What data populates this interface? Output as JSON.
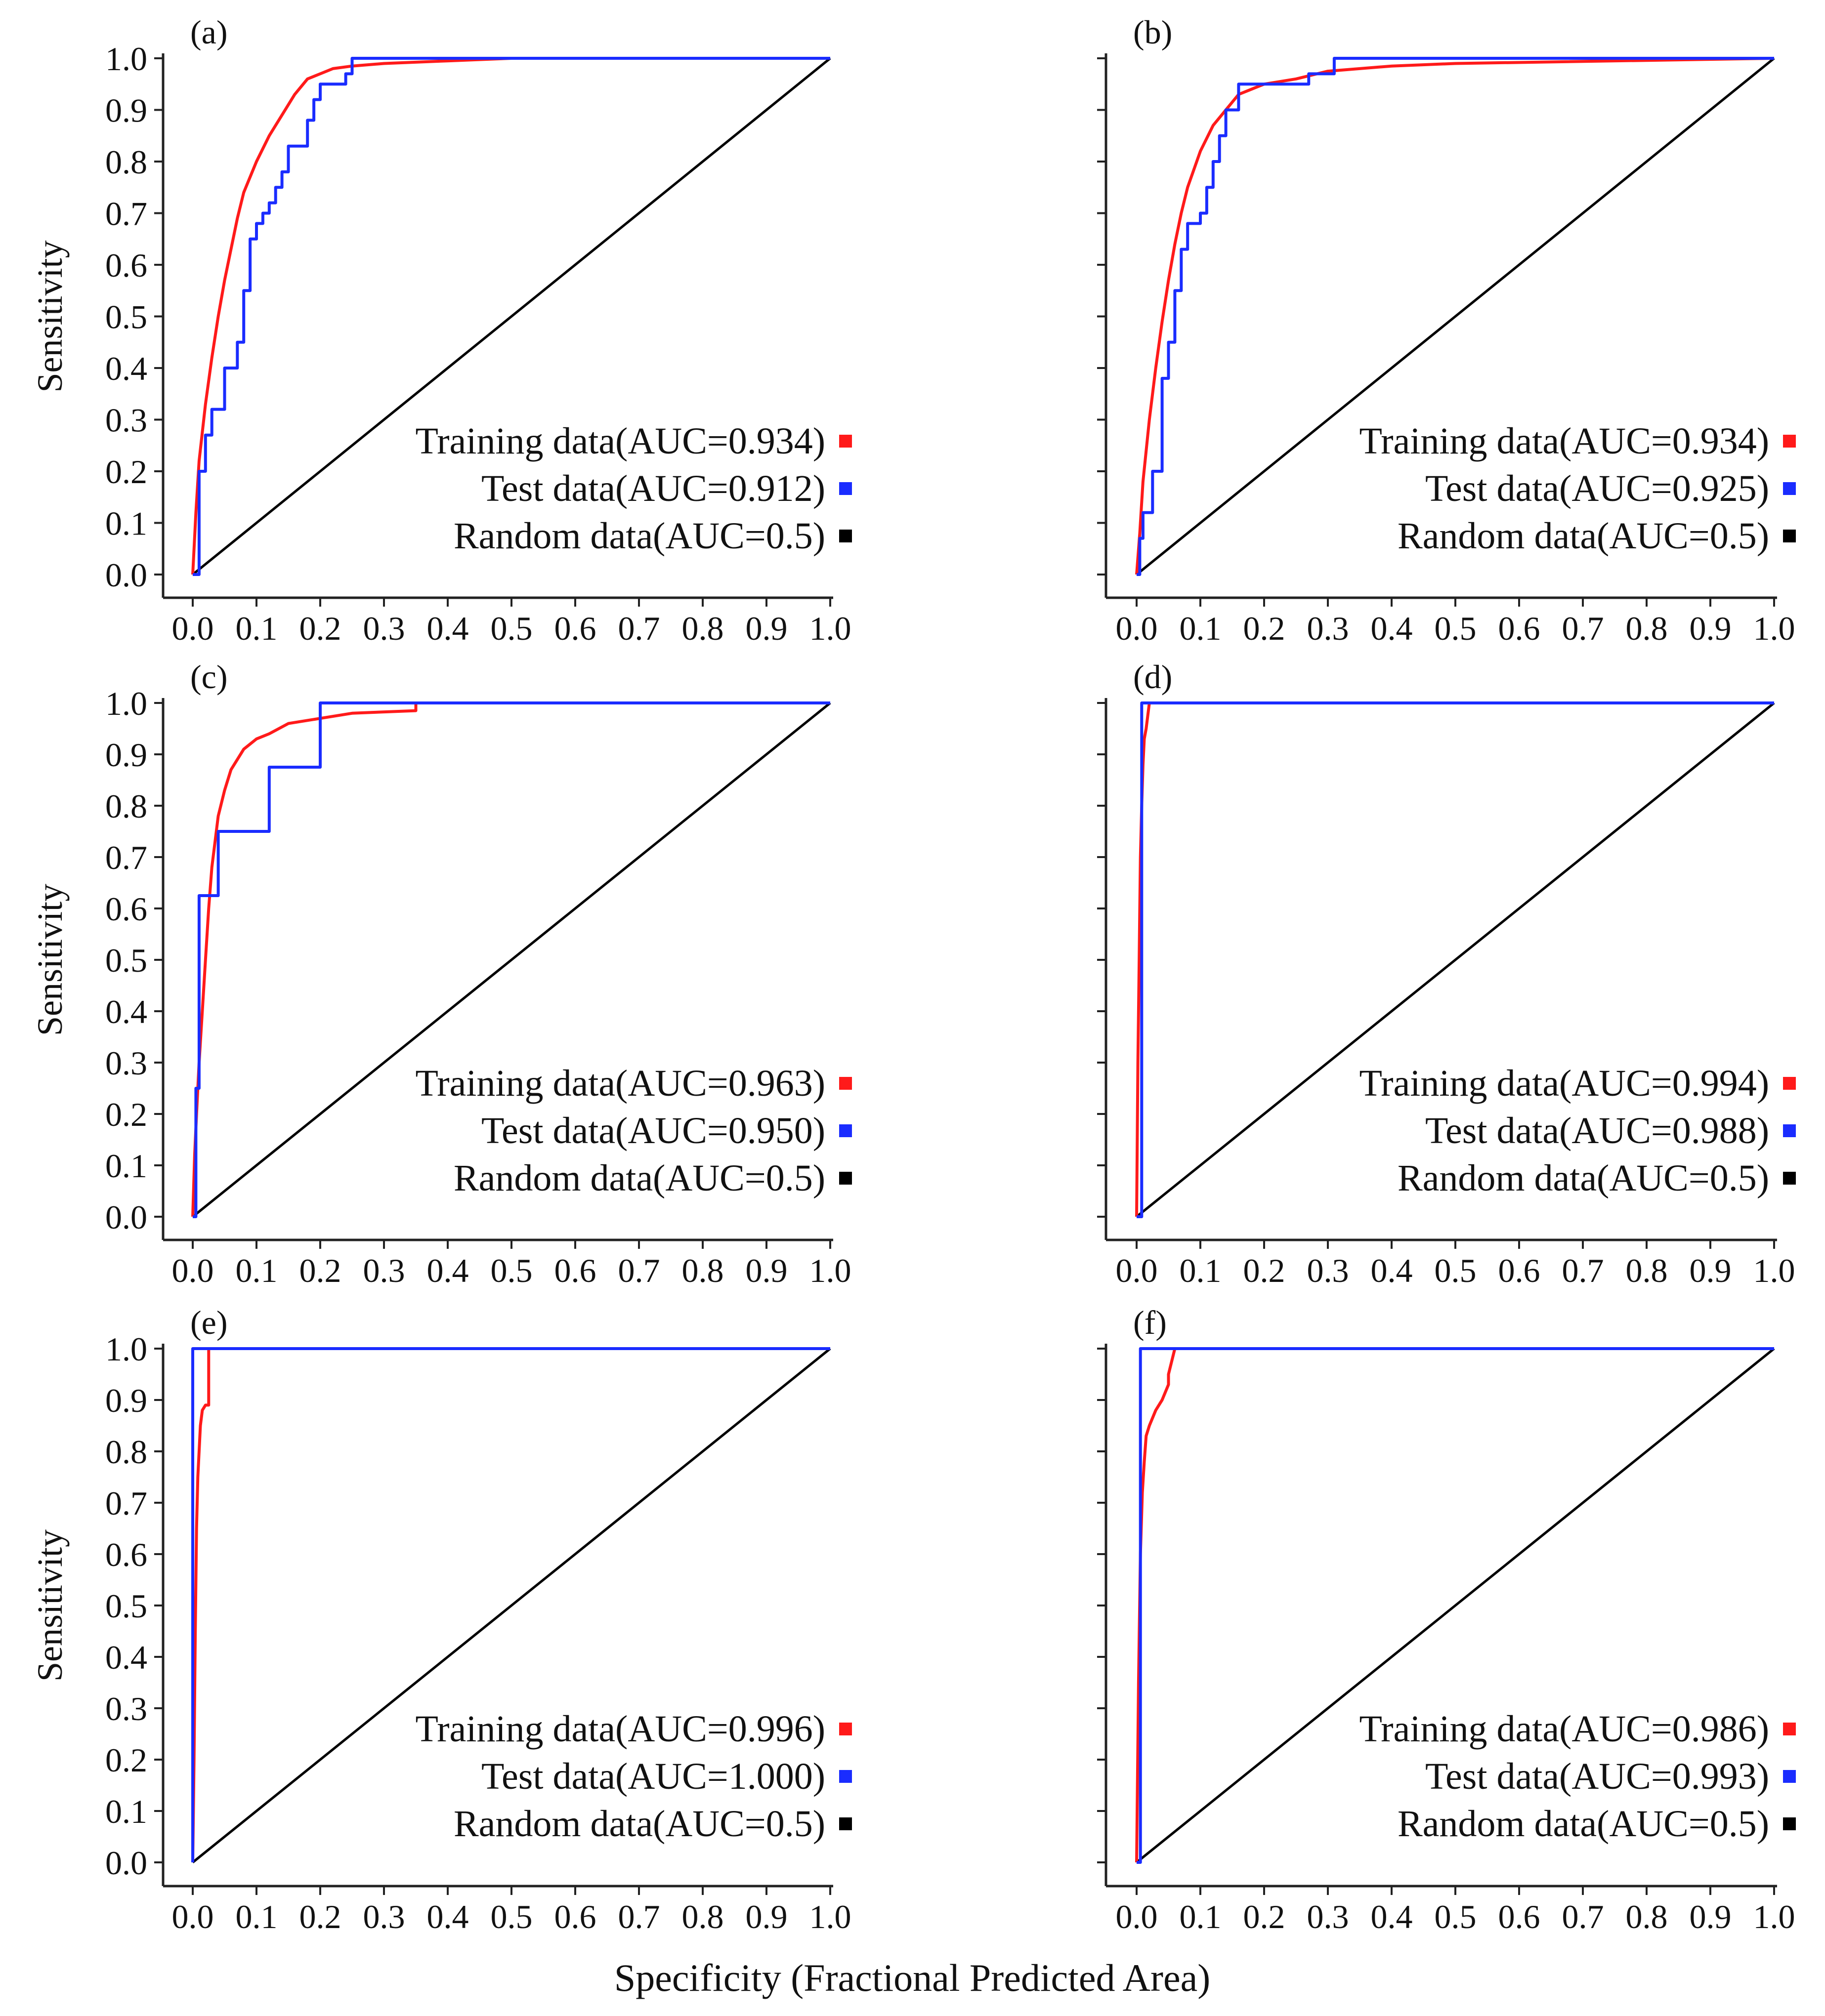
{
  "figure": {
    "xlabel": "Specificity (Fractional Predicted Area)",
    "colors": {
      "training": "#ff1a1a",
      "test": "#1a2cff",
      "random": "#000000"
    }
  },
  "chart_data": [
    {
      "type": "line",
      "panel": "(a)",
      "xlim": [
        0,
        1
      ],
      "ylim": [
        0,
        1
      ],
      "ylabel": "Sensitivity",
      "legend_position": "bottom-right",
      "xticks": [
        "0.0",
        "0.1",
        "0.2",
        "0.3",
        "0.4",
        "0.5",
        "0.6",
        "0.7",
        "0.8",
        "0.9",
        "1.0"
      ],
      "yticks": [
        "0.0",
        "0.1",
        "0.2",
        "0.3",
        "0.4",
        "0.5",
        "0.6",
        "0.7",
        "0.8",
        "0.9",
        "1.0"
      ],
      "series": [
        {
          "name": "Training data(AUC=0.934)",
          "color": "#ff1a1a",
          "x": [
            0,
            0.005,
            0.01,
            0.02,
            0.03,
            0.04,
            0.05,
            0.06,
            0.07,
            0.08,
            0.1,
            0.12,
            0.14,
            0.16,
            0.18,
            0.2,
            0.22,
            0.25,
            0.3,
            0.4,
            0.5,
            1.0
          ],
          "y": [
            0,
            0.12,
            0.22,
            0.33,
            0.42,
            0.5,
            0.57,
            0.63,
            0.69,
            0.74,
            0.8,
            0.85,
            0.89,
            0.93,
            0.96,
            0.97,
            0.98,
            0.985,
            0.99,
            0.995,
            1.0,
            1.0
          ]
        },
        {
          "name": "Test data(AUC=0.912)",
          "color": "#1a2cff",
          "x": [
            0,
            0.01,
            0.01,
            0.02,
            0.02,
            0.03,
            0.03,
            0.05,
            0.05,
            0.07,
            0.07,
            0.08,
            0.08,
            0.09,
            0.09,
            0.1,
            0.1,
            0.11,
            0.11,
            0.12,
            0.12,
            0.13,
            0.13,
            0.14,
            0.14,
            0.15,
            0.15,
            0.18,
            0.18,
            0.19,
            0.19,
            0.2,
            0.2,
            0.22,
            0.22,
            0.24,
            0.24,
            0.25,
            0.25,
            1.0
          ],
          "y": [
            0,
            0,
            0.2,
            0.2,
            0.27,
            0.27,
            0.32,
            0.32,
            0.4,
            0.4,
            0.45,
            0.45,
            0.55,
            0.55,
            0.65,
            0.65,
            0.68,
            0.68,
            0.7,
            0.7,
            0.72,
            0.72,
            0.75,
            0.75,
            0.78,
            0.78,
            0.83,
            0.83,
            0.88,
            0.88,
            0.92,
            0.92,
            0.95,
            0.95,
            0.95,
            0.95,
            0.97,
            0.97,
            1.0,
            1.0
          ]
        },
        {
          "name": "Random data(AUC=0.5)",
          "color": "#000000",
          "x": [
            0,
            1
          ],
          "y": [
            0,
            1
          ]
        }
      ]
    },
    {
      "type": "line",
      "panel": "(b)",
      "xlim": [
        0,
        1
      ],
      "ylim": [
        0,
        1
      ],
      "ylabel": "",
      "legend_position": "bottom-right",
      "xticks": [
        "0.0",
        "0.1",
        "0.2",
        "0.3",
        "0.4",
        "0.5",
        "0.6",
        "0.7",
        "0.8",
        "0.9",
        "1.0"
      ],
      "yticks": [],
      "series": [
        {
          "name": "Training data(AUC=0.934)",
          "color": "#ff1a1a",
          "x": [
            0,
            0.005,
            0.01,
            0.02,
            0.03,
            0.04,
            0.05,
            0.06,
            0.07,
            0.08,
            0.1,
            0.12,
            0.14,
            0.16,
            0.18,
            0.2,
            0.25,
            0.3,
            0.4,
            0.5,
            1.0
          ],
          "y": [
            0,
            0.08,
            0.18,
            0.3,
            0.4,
            0.49,
            0.57,
            0.64,
            0.7,
            0.75,
            0.82,
            0.87,
            0.9,
            0.93,
            0.94,
            0.95,
            0.96,
            0.975,
            0.985,
            0.99,
            1.0
          ]
        },
        {
          "name": "Test data(AUC=0.925)",
          "color": "#1a2cff",
          "x": [
            0,
            0.005,
            0.005,
            0.01,
            0.01,
            0.025,
            0.025,
            0.04,
            0.04,
            0.05,
            0.05,
            0.06,
            0.06,
            0.07,
            0.07,
            0.08,
            0.08,
            0.1,
            0.1,
            0.11,
            0.11,
            0.12,
            0.12,
            0.13,
            0.13,
            0.14,
            0.14,
            0.16,
            0.16,
            0.27,
            0.27,
            0.31,
            0.31,
            1.0
          ],
          "y": [
            0,
            0,
            0.07,
            0.07,
            0.12,
            0.12,
            0.2,
            0.2,
            0.38,
            0.38,
            0.45,
            0.45,
            0.55,
            0.55,
            0.63,
            0.63,
            0.68,
            0.68,
            0.7,
            0.7,
            0.75,
            0.75,
            0.8,
            0.8,
            0.85,
            0.85,
            0.9,
            0.9,
            0.95,
            0.95,
            0.97,
            0.97,
            1.0,
            1.0
          ]
        },
        {
          "name": "Random data(AUC=0.5)",
          "color": "#000000",
          "x": [
            0,
            1
          ],
          "y": [
            0,
            1
          ]
        }
      ]
    },
    {
      "type": "line",
      "panel": "(c)",
      "xlim": [
        0,
        1
      ],
      "ylim": [
        0,
        1
      ],
      "ylabel": "Sensitivity",
      "legend_position": "bottom-right",
      "xticks": [
        "0.0",
        "0.1",
        "0.2",
        "0.3",
        "0.4",
        "0.5",
        "0.6",
        "0.7",
        "0.8",
        "0.9",
        "1.0"
      ],
      "yticks": [
        "0.0",
        "0.1",
        "0.2",
        "0.3",
        "0.4",
        "0.5",
        "0.6",
        "0.7",
        "0.8",
        "0.9",
        "1.0"
      ],
      "series": [
        {
          "name": "Training data(AUC=0.963)",
          "color": "#ff1a1a",
          "x": [
            0,
            0.003,
            0.006,
            0.01,
            0.015,
            0.02,
            0.025,
            0.03,
            0.04,
            0.05,
            0.06,
            0.08,
            0.1,
            0.12,
            0.15,
            0.2,
            0.25,
            0.35,
            0.35,
            1.0
          ],
          "y": [
            0,
            0.12,
            0.2,
            0.3,
            0.4,
            0.5,
            0.6,
            0.68,
            0.78,
            0.83,
            0.87,
            0.91,
            0.93,
            0.94,
            0.96,
            0.97,
            0.98,
            0.985,
            1.0,
            1.0
          ]
        },
        {
          "name": "Test data(AUC=0.950)",
          "color": "#1a2cff",
          "x": [
            0,
            0.005,
            0.005,
            0.01,
            0.01,
            0.03,
            0.03,
            0.04,
            0.04,
            0.12,
            0.12,
            0.2,
            0.2,
            1.0
          ],
          "y": [
            0,
            0,
            0.25,
            0.25,
            0.625,
            0.625,
            0.625,
            0.625,
            0.75,
            0.75,
            0.875,
            0.875,
            1.0,
            1.0
          ]
        },
        {
          "name": "Random data(AUC=0.5)",
          "color": "#000000",
          "x": [
            0,
            1
          ],
          "y": [
            0,
            1
          ]
        }
      ]
    },
    {
      "type": "line",
      "panel": "(d)",
      "xlim": [
        0,
        1
      ],
      "ylim": [
        0,
        1
      ],
      "ylabel": "",
      "legend_position": "bottom-right",
      "xticks": [
        "0.0",
        "0.1",
        "0.2",
        "0.3",
        "0.4",
        "0.5",
        "0.6",
        "0.7",
        "0.8",
        "0.9",
        "1.0"
      ],
      "yticks": [],
      "series": [
        {
          "name": "Training data(AUC=0.994)",
          "color": "#ff1a1a",
          "x": [
            0,
            0.002,
            0.004,
            0.005,
            0.006,
            0.008,
            0.01,
            0.012,
            0.015,
            0.02,
            1.0
          ],
          "y": [
            0,
            0.3,
            0.5,
            0.6,
            0.7,
            0.8,
            0.88,
            0.93,
            0.95,
            1.0,
            1.0
          ]
        },
        {
          "name": "Test data(AUC=0.988)",
          "color": "#1a2cff",
          "x": [
            0,
            0.008,
            0.008,
            1.0
          ],
          "y": [
            0,
            0,
            1.0,
            1.0
          ]
        },
        {
          "name": "Random data(AUC=0.5)",
          "color": "#000000",
          "x": [
            0,
            1
          ],
          "y": [
            0,
            1
          ]
        }
      ]
    },
    {
      "type": "line",
      "panel": "(e)",
      "xlim": [
        0,
        1
      ],
      "ylim": [
        0,
        1
      ],
      "ylabel": "Sensitivity",
      "legend_position": "bottom-right",
      "xticks": [
        "0.0",
        "0.1",
        "0.2",
        "0.3",
        "0.4",
        "0.5",
        "0.6",
        "0.7",
        "0.8",
        "0.9",
        "1.0"
      ],
      "yticks": [
        "0.0",
        "0.1",
        "0.2",
        "0.3",
        "0.4",
        "0.5",
        "0.6",
        "0.7",
        "0.8",
        "0.9",
        "1.0"
      ],
      "series": [
        {
          "name": "Training data(AUC=0.996)",
          "color": "#ff1a1a",
          "x": [
            0,
            0.002,
            0.004,
            0.006,
            0.008,
            0.01,
            0.012,
            0.015,
            0.02,
            0.025,
            0.025,
            1.0
          ],
          "y": [
            0,
            0.2,
            0.45,
            0.65,
            0.75,
            0.8,
            0.85,
            0.88,
            0.89,
            0.89,
            1.0,
            1.0
          ]
        },
        {
          "name": "Test data(AUC=1.000)",
          "color": "#1a2cff",
          "x": [
            0,
            0,
            1.0
          ],
          "y": [
            0,
            1.0,
            1.0
          ]
        },
        {
          "name": "Random data(AUC=0.5)",
          "color": "#000000",
          "x": [
            0,
            1
          ],
          "y": [
            0,
            1
          ]
        }
      ]
    },
    {
      "type": "line",
      "panel": "(f)",
      "xlim": [
        0,
        1
      ],
      "ylim": [
        0,
        1
      ],
      "ylabel": "",
      "legend_position": "bottom-right",
      "xticks": [
        "0.0",
        "0.1",
        "0.2",
        "0.3",
        "0.4",
        "0.5",
        "0.6",
        "0.7",
        "0.8",
        "0.9",
        "1.0"
      ],
      "yticks": [],
      "series": [
        {
          "name": "Training data(AUC=0.986)",
          "color": "#ff1a1a",
          "x": [
            0,
            0.003,
            0.006,
            0.009,
            0.012,
            0.015,
            0.02,
            0.03,
            0.04,
            0.05,
            0.05,
            0.06,
            1.0
          ],
          "y": [
            0,
            0.35,
            0.6,
            0.72,
            0.78,
            0.83,
            0.85,
            0.88,
            0.9,
            0.93,
            0.95,
            1.0,
            1.0
          ]
        },
        {
          "name": "Test data(AUC=0.993)",
          "color": "#1a2cff",
          "x": [
            0,
            0.006,
            0.006,
            0.04,
            0.04,
            1.0
          ],
          "y": [
            0,
            0,
            1.0,
            1.0,
            1.0,
            1.0
          ]
        },
        {
          "name": "Random data(AUC=0.5)",
          "color": "#000000",
          "x": [
            0,
            1
          ],
          "y": [
            0,
            1
          ]
        }
      ]
    }
  ]
}
